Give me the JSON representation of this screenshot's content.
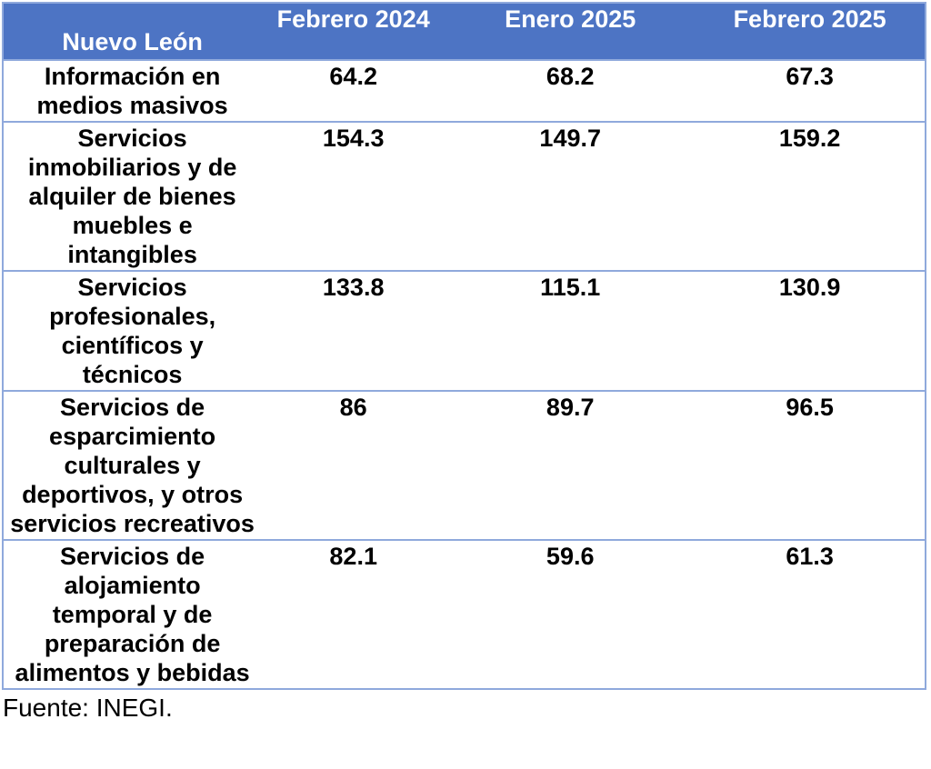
{
  "chart_data": {
    "type": "table",
    "corner_header": "Nuevo León",
    "columns": [
      "Febrero 2024",
      "Enero 2025",
      "Febrero 2025"
    ],
    "rows": [
      {
        "category": "Información en medios masivos",
        "values": [
          64.2,
          68.2,
          67.3
        ]
      },
      {
        "category": "Servicios inmobiliarios y de alquiler de bienes muebles e intangibles",
        "values": [
          154.3,
          149.7,
          159.2
        ]
      },
      {
        "category": "Servicios profesionales, científicos y técnicos",
        "values": [
          133.8,
          115.1,
          130.9
        ]
      },
      {
        "category": "Servicios de esparcimiento culturales y deportivos, y otros servicios recreativos",
        "values": [
          86,
          89.7,
          96.5
        ]
      },
      {
        "category": "Servicios de alojamiento temporal y de preparación de alimentos y bebidas",
        "values": [
          82.1,
          59.6,
          61.3
        ]
      }
    ],
    "source_note": "Fuente: INEGI.",
    "layout": {
      "grid": "horizontal-borders-only",
      "header_position": "top",
      "value_alignment": "center-top"
    }
  },
  "colors": {
    "header_bg": "#4d74c4",
    "header_text": "#ffffff",
    "border": "#8fa9dc",
    "body_text": "#000000",
    "background": "#ffffff"
  }
}
